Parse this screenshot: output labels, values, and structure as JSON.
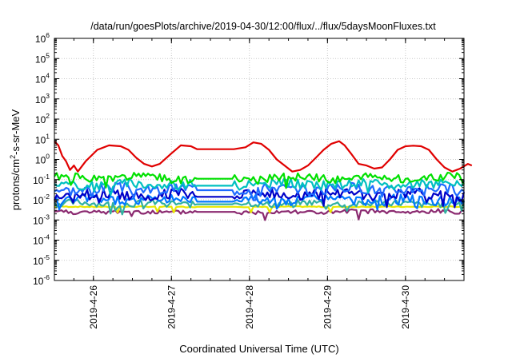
{
  "chart_data": {
    "type": "line",
    "title": "/data/run/goesPlots/archive/2019-04-30/12:00/flux/../flux/5daysMoonFluxes.txt",
    "xlabel": "Coordinated Universal Time (UTC)",
    "ylabel": {
      "pre": "protons/cm",
      "sup": "2",
      "post": "-s-sr-MeV"
    },
    "yscale": "log",
    "ylim": [
      1e-06,
      1000000.0
    ],
    "y_tick_exponents": [
      -6,
      -5,
      -4,
      -3,
      -2,
      -1,
      0,
      1,
      2,
      3,
      4,
      5,
      6
    ],
    "x_range_days": [
      "2019-04-25T12:00",
      "2019-04-30T18:00"
    ],
    "x_ticks": [
      "2019-4-26",
      "2019-4-27",
      "2019-4-28",
      "2019-4-29",
      "2019-4-30"
    ],
    "grid": true,
    "legend": "none",
    "series": [
      {
        "color": "#e00000",
        "points": [
          [
            0.0,
            8
          ],
          [
            0.05,
            5
          ],
          [
            0.1,
            1.5
          ],
          [
            0.15,
            0.8
          ],
          [
            0.2,
            0.3
          ],
          [
            0.25,
            0.5
          ],
          [
            0.3,
            0.25
          ],
          [
            0.4,
            0.8
          ],
          [
            0.55,
            3
          ],
          [
            0.7,
            5
          ],
          [
            0.85,
            4.5
          ],
          [
            0.95,
            3
          ],
          [
            1.05,
            1.2
          ],
          [
            1.15,
            0.6
          ],
          [
            1.25,
            0.45
          ],
          [
            1.35,
            0.6
          ],
          [
            1.5,
            2
          ],
          [
            1.62,
            5
          ],
          [
            1.75,
            4.5
          ],
          [
            1.83,
            3.2
          ],
          [
            2.3,
            3.2
          ],
          [
            2.45,
            4
          ],
          [
            2.55,
            7
          ],
          [
            2.65,
            6
          ],
          [
            2.75,
            3
          ],
          [
            2.85,
            1
          ],
          [
            2.95,
            0.5
          ],
          [
            3.05,
            0.25
          ],
          [
            3.15,
            0.3
          ],
          [
            3.25,
            0.5
          ],
          [
            3.35,
            1.2
          ],
          [
            3.45,
            3
          ],
          [
            3.55,
            6
          ],
          [
            3.65,
            8
          ],
          [
            3.72,
            5
          ],
          [
            3.8,
            2
          ],
          [
            3.9,
            0.6
          ],
          [
            4.0,
            0.5
          ],
          [
            4.1,
            0.35
          ],
          [
            4.2,
            0.4
          ],
          [
            4.3,
            1
          ],
          [
            4.4,
            3
          ],
          [
            4.5,
            4.5
          ],
          [
            4.6,
            4.8
          ],
          [
            4.7,
            4.5
          ],
          [
            4.8,
            3
          ],
          [
            4.9,
            1
          ],
          [
            5.0,
            0.4
          ],
          [
            5.1,
            0.25
          ],
          [
            5.2,
            0.35
          ],
          [
            5.3,
            0.6
          ],
          [
            5.35,
            0.5
          ]
        ]
      },
      {
        "color": "#00e000",
        "base": 0.12,
        "amp": 0.45,
        "flat": 0.11,
        "seed": 1
      },
      {
        "color": "#00c0c0",
        "base": 0.06,
        "amp": 0.5,
        "flat": 0.05,
        "seed": 2
      },
      {
        "color": "#1e6bff",
        "base": 0.035,
        "amp": 0.55,
        "flat": 0.03,
        "seed": 3
      },
      {
        "color": "#0000c8",
        "base": 0.018,
        "amp": 0.55,
        "flat": 0.014,
        "seed": 4
      },
      {
        "color": "#0078ff",
        "base": 0.01,
        "amp": 0.5,
        "flat": 0.008,
        "seed": 5
      },
      {
        "color": "#30b0a0",
        "base": 0.0065,
        "amp": 0.35,
        "flat": 0.006,
        "seed": 6
      },
      {
        "color": "#e8e800",
        "base": 0.0045,
        "amp": 0.05,
        "flat": 0.0045,
        "seed": 7
      },
      {
        "color": "#8b2a70",
        "base": 0.0025,
        "amp": 0.25,
        "flat": 0.0025,
        "seed": 8
      }
    ],
    "data_gap_days": [
      1.83,
      2.3
    ]
  }
}
